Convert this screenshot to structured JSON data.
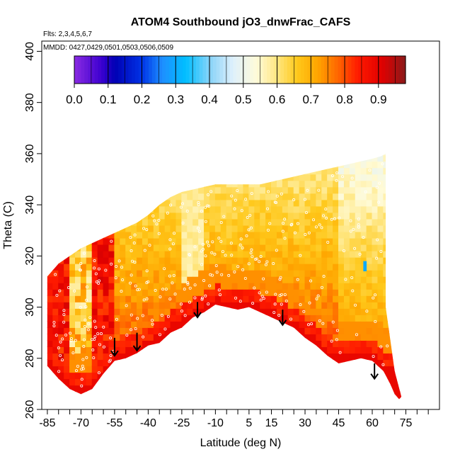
{
  "chart_data": {
    "type": "heatmap",
    "title": "ATOM4 Southbound jO3_dnwFrac_CAFS",
    "flights_label": "Flts: 2,3,4,5,6,7",
    "dates_label": "MMDD: 0427,0429,0501,0503,0506,0509",
    "xlabel": "Latitude (deg N)",
    "ylabel": "Theta (C)",
    "xlim": [
      -87.5,
      90
    ],
    "ylim": [
      260,
      404
    ],
    "x_ticks": [
      -85,
      -70,
      -55,
      -40,
      -25,
      -10,
      5,
      15,
      30,
      45,
      60,
      75
    ],
    "x_minor_ticks": [
      -80,
      -75,
      -65,
      -60,
      -50,
      -45,
      -35,
      -30,
      -20,
      -15,
      -5,
      0,
      10,
      20,
      25,
      35,
      40,
      50,
      55,
      65,
      70,
      80,
      85
    ],
    "y_ticks": [
      260,
      280,
      300,
      320,
      340,
      360,
      380,
      400
    ],
    "colorbar": {
      "min": 0.0,
      "max": 0.98,
      "tick_labels": [
        "0.0",
        "0.1",
        "0.2",
        "0.3",
        "0.4",
        "0.5",
        "0.6",
        "0.7",
        "0.8",
        "0.9"
      ],
      "tick_values": [
        0.0,
        0.1,
        0.2,
        0.3,
        0.4,
        0.5,
        0.6,
        0.7,
        0.8,
        0.9
      ],
      "colors": [
        {
          "v": 0.0,
          "c": "#8a2be2"
        },
        {
          "v": 0.08,
          "c": "#3d00d0"
        },
        {
          "v": 0.12,
          "c": "#0000b4"
        },
        {
          "v": 0.2,
          "c": "#0033e6"
        },
        {
          "v": 0.26,
          "c": "#1e8fff"
        },
        {
          "v": 0.33,
          "c": "#00bfff"
        },
        {
          "v": 0.4,
          "c": "#87d3f8"
        },
        {
          "v": 0.47,
          "c": "#dff0fc"
        },
        {
          "v": 0.54,
          "c": "#fffbd8"
        },
        {
          "v": 0.6,
          "c": "#ffe680"
        },
        {
          "v": 0.66,
          "c": "#ffc81a"
        },
        {
          "v": 0.72,
          "c": "#ffa500"
        },
        {
          "v": 0.78,
          "c": "#ff6600"
        },
        {
          "v": 0.84,
          "c": "#ff1a00"
        },
        {
          "v": 0.91,
          "c": "#e00000"
        },
        {
          "v": 0.98,
          "c": "#8b1a1a"
        }
      ]
    },
    "boundary": {
      "top": [
        [
          -85,
          312
        ],
        [
          -80,
          317
        ],
        [
          -75,
          320
        ],
        [
          -70,
          323
        ],
        [
          -65,
          325
        ],
        [
          -60,
          327
        ],
        [
          -55,
          329
        ],
        [
          -50,
          331
        ],
        [
          -45,
          333
        ],
        [
          -40,
          336
        ],
        [
          -35,
          340
        ],
        [
          -30,
          343
        ],
        [
          -25,
          345
        ],
        [
          -20,
          346
        ],
        [
          -15,
          347
        ],
        [
          -10,
          348
        ],
        [
          -5,
          348
        ],
        [
          0,
          348
        ],
        [
          5,
          348
        ],
        [
          10,
          348
        ],
        [
          15,
          349
        ],
        [
          20,
          350
        ],
        [
          25,
          351
        ],
        [
          30,
          352
        ],
        [
          35,
          353
        ],
        [
          40,
          354
        ],
        [
          45,
          355
        ],
        [
          50,
          356
        ],
        [
          55,
          357
        ],
        [
          60,
          358
        ],
        [
          64,
          359
        ],
        [
          66,
          360
        ]
      ],
      "bottom": [
        [
          -85,
          277
        ],
        [
          -80,
          272
        ],
        [
          -75,
          268
        ],
        [
          -70,
          266
        ],
        [
          -65,
          268
        ],
        [
          -60,
          274
        ],
        [
          -55,
          279
        ],
        [
          -50,
          280
        ],
        [
          -45,
          282
        ],
        [
          -40,
          285
        ],
        [
          -35,
          286
        ],
        [
          -30,
          290
        ],
        [
          -25,
          292
        ],
        [
          -20,
          296
        ],
        [
          -15,
          298
        ],
        [
          -10,
          301
        ],
        [
          -5,
          300
        ],
        [
          0,
          299
        ],
        [
          5,
          300
        ],
        [
          10,
          298
        ],
        [
          15,
          296
        ],
        [
          20,
          294
        ],
        [
          25,
          292
        ],
        [
          30,
          288
        ],
        [
          35,
          285
        ],
        [
          40,
          281
        ],
        [
          45,
          278
        ],
        [
          50,
          279
        ],
        [
          55,
          280
        ],
        [
          60,
          279
        ],
        [
          65,
          275
        ],
        [
          68,
          270
        ],
        [
          70,
          266
        ],
        [
          72,
          264
        ],
        [
          73,
          265
        ],
        [
          70,
          275
        ],
        [
          66,
          300
        ],
        [
          66,
          360
        ]
      ]
    },
    "arrows": [
      {
        "lat": -55,
        "theta_top": 288,
        "theta_bottom": 281
      },
      {
        "lat": -45,
        "theta_top": 290,
        "theta_bottom": 283
      },
      {
        "lat": -18,
        "theta_top": 302,
        "theta_bottom": 296
      },
      {
        "lat": 20,
        "theta_top": 299,
        "theta_bottom": 293
      },
      {
        "lat": 61,
        "theta_top": 278,
        "theta_bottom": 272
      }
    ]
  }
}
